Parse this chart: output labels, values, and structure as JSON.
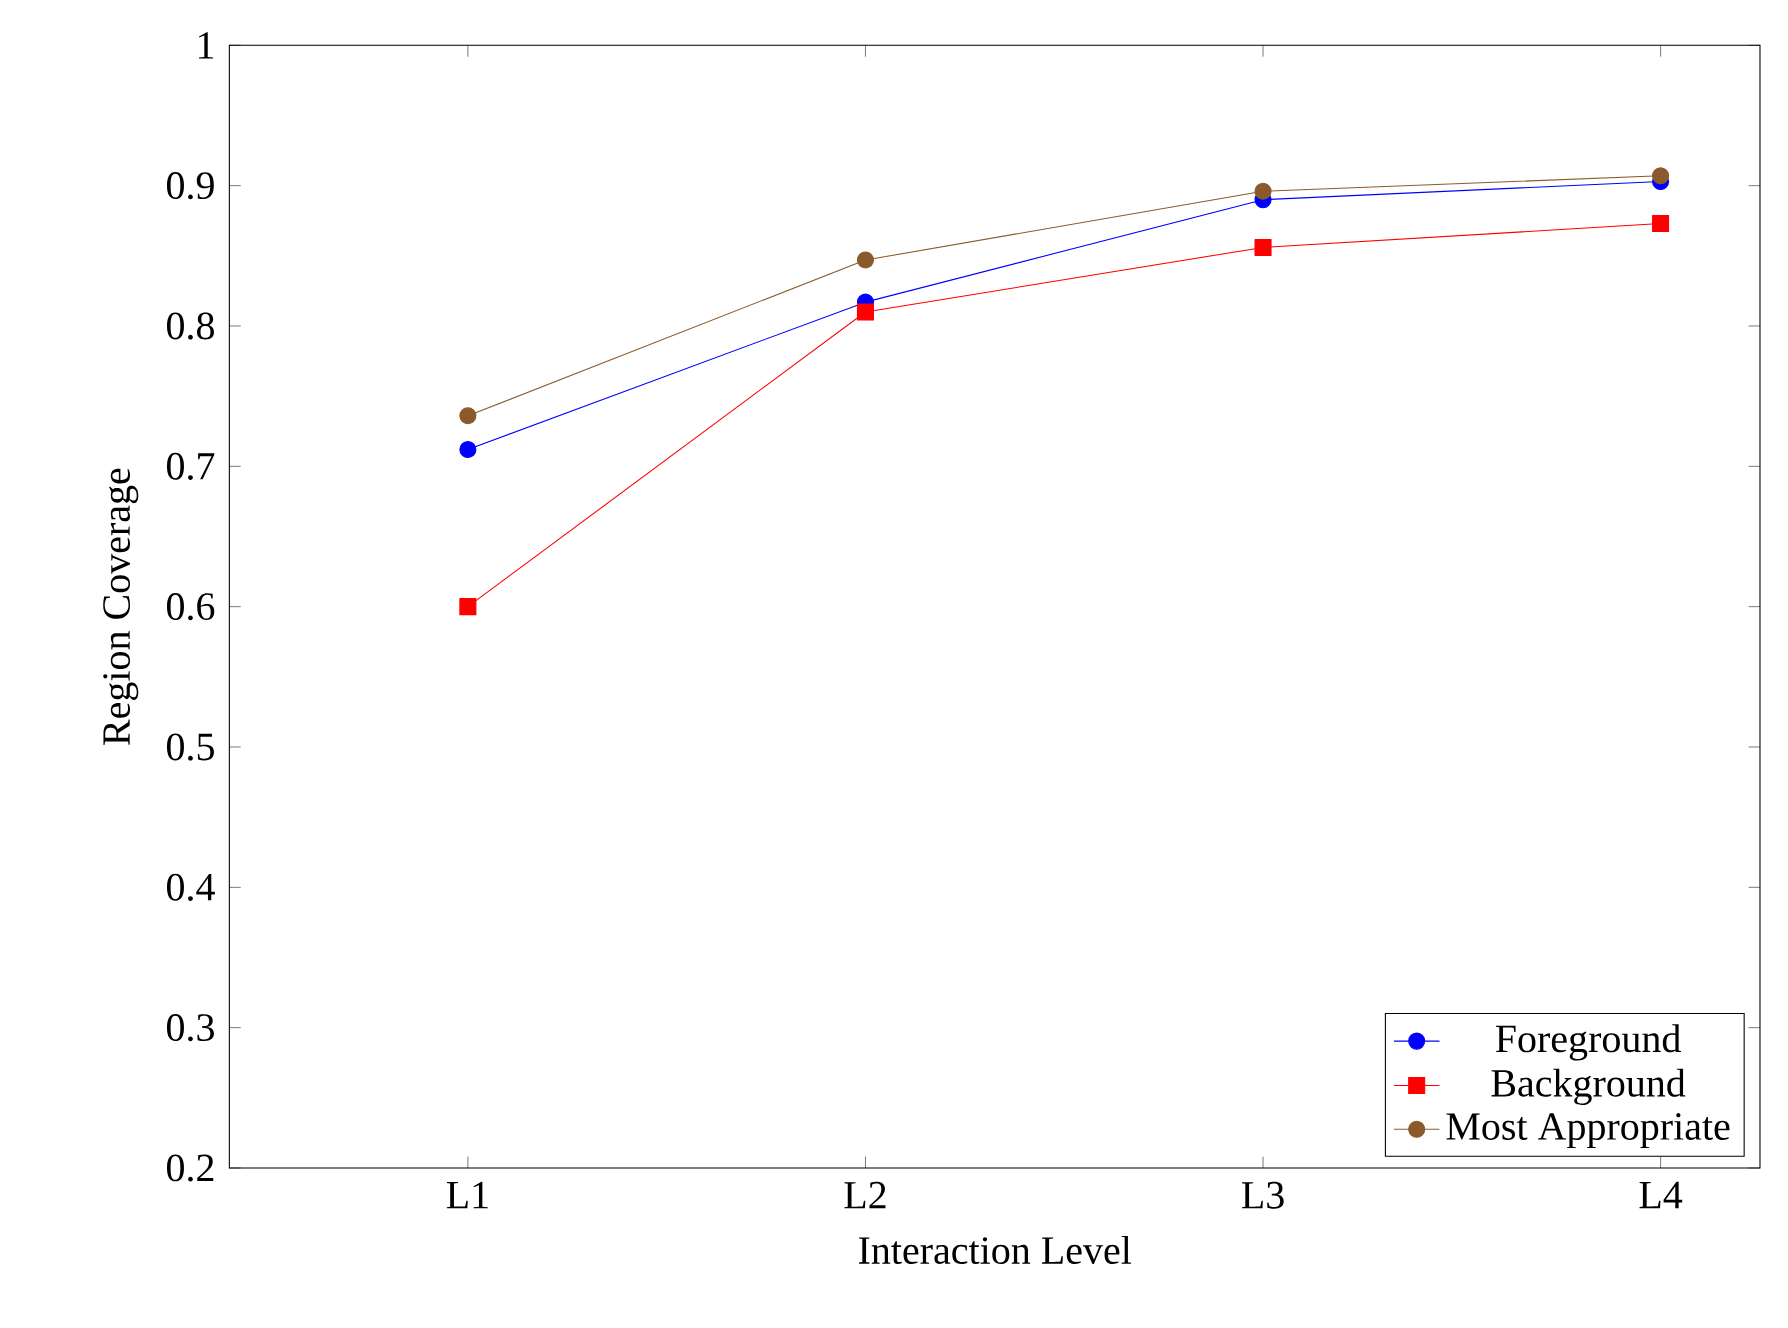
{
  "chart_data": {
    "type": "line",
    "xlabel": "Interaction Level",
    "ylabel": "Region Coverage",
    "categories": [
      "L1",
      "L2",
      "L3",
      "L4"
    ],
    "series": [
      {
        "name": "Foreground",
        "color": "#0000ff",
        "marker": "circle",
        "values": [
          0.712,
          0.817,
          0.89,
          0.903
        ]
      },
      {
        "name": "Background",
        "color": "#ff0000",
        "marker": "square",
        "values": [
          0.6,
          0.81,
          0.856,
          0.873
        ]
      },
      {
        "name": "Most Appropriate",
        "color": "#8b5a2b",
        "marker": "circle",
        "values": [
          0.736,
          0.847,
          0.896,
          0.907
        ]
      }
    ],
    "ylim": [
      0.2,
      1
    ],
    "yticks": [
      0.2,
      0.3,
      0.4,
      0.5,
      0.6,
      0.7,
      0.8,
      0.9,
      1
    ],
    "grid": false,
    "legend": "bottom right",
    "line_style": "solid"
  }
}
